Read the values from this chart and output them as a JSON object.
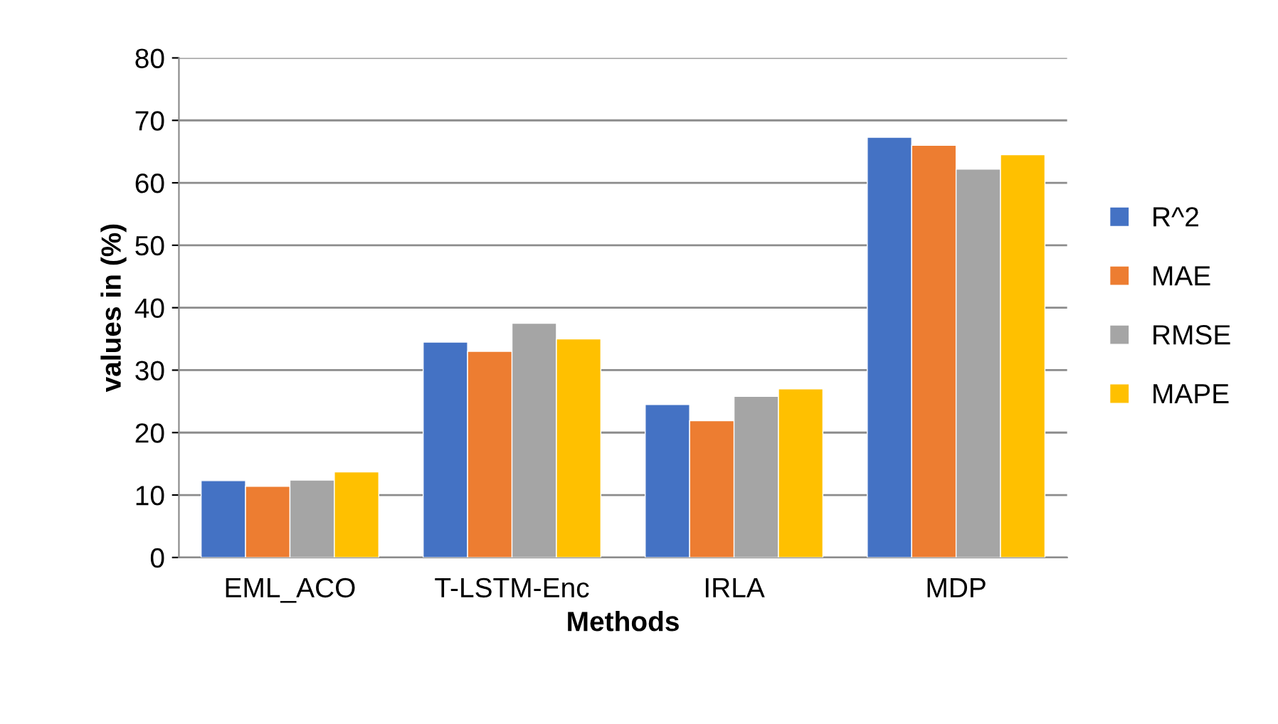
{
  "chart_data": {
    "type": "bar",
    "xlabel": "Methods",
    "ylabel": "values in (%)",
    "categories": [
      "EML_ACO",
      "T-LSTM-Enc",
      "IRLA",
      "MDP"
    ],
    "series": [
      {
        "name": "R^2",
        "color": "#4472c4",
        "values": [
          12.3,
          34.5,
          24.5,
          67.3
        ]
      },
      {
        "name": "MAE",
        "color": "#ed7d31",
        "values": [
          11.4,
          33.0,
          21.9,
          66.0
        ]
      },
      {
        "name": "RMSE",
        "color": "#a5a5a5",
        "values": [
          12.4,
          37.5,
          25.8,
          62.2
        ]
      },
      {
        "name": "MAPE",
        "color": "#ffc000",
        "values": [
          13.7,
          35.0,
          27.0,
          64.5
        ]
      }
    ],
    "ylim": [
      0,
      80
    ],
    "yticks": [
      0,
      10,
      20,
      30,
      40,
      50,
      60,
      70,
      80
    ],
    "grid": "y",
    "legend": "right"
  }
}
